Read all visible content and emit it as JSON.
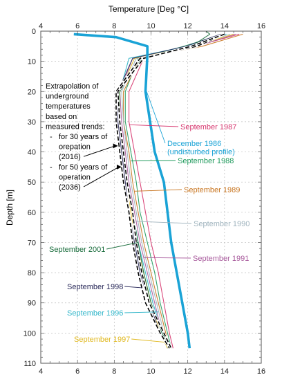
{
  "chart_data": {
    "type": "line",
    "title": "",
    "xlabel": "Temperature [Deg °C]",
    "ylabel": "Depth [m]",
    "xlim": [
      4,
      16
    ],
    "ylim": [
      0,
      110
    ],
    "y_inverted": true,
    "x_axis_position": "top and bottom",
    "grid": "dotted, every 2 °C and 10 m",
    "xticks": [
      4,
      6,
      8,
      10,
      12,
      14,
      16
    ],
    "yticks": [
      0,
      10,
      20,
      30,
      40,
      50,
      60,
      70,
      80,
      90,
      100,
      110
    ],
    "series": [
      {
        "name": "December 1986",
        "color": "#1aa3d6",
        "style": "thick",
        "points": [
          [
            5.8,
            1
          ],
          [
            8.1,
            2
          ],
          [
            9.8,
            5
          ],
          [
            9.8,
            8
          ],
          [
            9.7,
            20
          ],
          [
            10.2,
            40
          ],
          [
            10.7,
            50
          ],
          [
            10.9,
            60
          ],
          [
            11.1,
            70
          ],
          [
            11.4,
            80
          ],
          [
            11.7,
            90
          ],
          [
            12.0,
            100
          ],
          [
            12.1,
            105
          ]
        ]
      },
      {
        "name": "September 1987",
        "color": "#d6336c",
        "points": [
          [
            14.8,
            1
          ],
          [
            12.4,
            5
          ],
          [
            9.6,
            9
          ],
          [
            8.8,
            20
          ],
          [
            8.8,
            30
          ],
          [
            9.1,
            40
          ],
          [
            9.4,
            50
          ],
          [
            9.7,
            60
          ],
          [
            10.0,
            70
          ],
          [
            10.4,
            80
          ],
          [
            10.7,
            90
          ],
          [
            11.0,
            100
          ],
          [
            11.2,
            105
          ]
        ]
      },
      {
        "name": "September 1988",
        "color": "#1f9a5c",
        "points": [
          [
            13.9,
            1
          ],
          [
            11.8,
            5
          ],
          [
            9.3,
            9
          ],
          [
            8.6,
            20
          ],
          [
            8.6,
            30
          ],
          [
            8.9,
            40
          ],
          [
            9.2,
            50
          ],
          [
            9.4,
            60
          ],
          [
            9.8,
            70
          ],
          [
            10.2,
            80
          ],
          [
            10.5,
            90
          ],
          [
            10.9,
            100
          ],
          [
            11.1,
            105
          ]
        ]
      },
      {
        "name": "September 1989",
        "color": "#c8741e",
        "points": [
          [
            15.0,
            1
          ],
          [
            12.8,
            5
          ],
          [
            9.4,
            9
          ],
          [
            8.5,
            20
          ],
          [
            8.5,
            30
          ],
          [
            8.8,
            40
          ],
          [
            9.0,
            50
          ],
          [
            9.3,
            60
          ],
          [
            9.6,
            70
          ],
          [
            10.0,
            80
          ],
          [
            10.4,
            90
          ],
          [
            10.8,
            100
          ],
          [
            11.0,
            105
          ]
        ]
      },
      {
        "name": "September 1990",
        "color": "#9fb3bd",
        "points": [
          [
            14.3,
            1
          ],
          [
            12.2,
            5
          ],
          [
            9.2,
            9
          ],
          [
            8.4,
            20
          ],
          [
            8.5,
            30
          ],
          [
            8.7,
            40
          ],
          [
            8.9,
            50
          ],
          [
            9.2,
            60
          ],
          [
            9.5,
            70
          ],
          [
            9.9,
            80
          ],
          [
            10.3,
            90
          ],
          [
            10.7,
            100
          ],
          [
            10.9,
            105
          ]
        ]
      },
      {
        "name": "September 1991",
        "color": "#a85a9c",
        "points": [
          [
            14.6,
            1
          ],
          [
            12.5,
            5
          ],
          [
            9.0,
            9
          ],
          [
            8.3,
            20
          ],
          [
            8.4,
            30
          ],
          [
            8.6,
            40
          ],
          [
            8.8,
            50
          ],
          [
            9.1,
            60
          ],
          [
            9.4,
            70
          ],
          [
            9.8,
            80
          ],
          [
            10.2,
            90
          ],
          [
            10.6,
            100
          ],
          [
            10.9,
            105
          ]
        ]
      },
      {
        "name": "September 1996",
        "color": "#2fb5c9",
        "points": [
          [
            14.1,
            1
          ],
          [
            12.0,
            5
          ],
          [
            8.8,
            9
          ],
          [
            8.3,
            20
          ],
          [
            8.3,
            30
          ],
          [
            8.5,
            40
          ],
          [
            8.7,
            50
          ],
          [
            9.0,
            60
          ],
          [
            9.3,
            70
          ],
          [
            9.7,
            80
          ],
          [
            10.1,
            90
          ],
          [
            10.6,
            100
          ],
          [
            10.9,
            105
          ]
        ]
      },
      {
        "name": "September 1997",
        "color": "#e0b81f",
        "points": [
          [
            14.5,
            1
          ],
          [
            12.3,
            5
          ],
          [
            9.1,
            9
          ],
          [
            8.3,
            20
          ],
          [
            8.3,
            30
          ],
          [
            8.5,
            40
          ],
          [
            8.7,
            50
          ],
          [
            8.9,
            60
          ],
          [
            9.2,
            70
          ],
          [
            9.6,
            80
          ],
          [
            10.0,
            90
          ],
          [
            10.5,
            100
          ],
          [
            10.9,
            105
          ]
        ]
      },
      {
        "name": "September 1998",
        "color": "#2a2a5a",
        "points": [
          [
            13.8,
            1
          ],
          [
            11.9,
            5
          ],
          [
            9.0,
            9
          ],
          [
            8.2,
            20
          ],
          [
            8.2,
            30
          ],
          [
            8.4,
            40
          ],
          [
            8.6,
            50
          ],
          [
            8.8,
            60
          ],
          [
            9.1,
            70
          ],
          [
            9.4,
            80
          ],
          [
            9.9,
            90
          ],
          [
            10.5,
            100
          ],
          [
            11.0,
            105
          ]
        ]
      },
      {
        "name": "September 2001",
        "color": "#176b3a",
        "points": [
          [
            13.0,
            0
          ],
          [
            13.2,
            1
          ],
          [
            12.2,
            5
          ],
          [
            9.5,
            9
          ],
          [
            8.3,
            20
          ],
          [
            8.3,
            30
          ],
          [
            8.5,
            40
          ],
          [
            8.7,
            50
          ],
          [
            9.0,
            60
          ],
          [
            9.3,
            70
          ],
          [
            9.6,
            80
          ],
          [
            10.0,
            90
          ],
          [
            10.6,
            100
          ],
          [
            11.1,
            105
          ]
        ]
      },
      {
        "name": "for 30 years of orepation (2016)",
        "color": "#000000",
        "style": "dashed",
        "points": [
          [
            14.0,
            1
          ],
          [
            12.5,
            5
          ],
          [
            9.4,
            9
          ],
          [
            8.1,
            20
          ],
          [
            8.1,
            30
          ],
          [
            8.3,
            40
          ],
          [
            8.5,
            50
          ],
          [
            8.8,
            60
          ],
          [
            9.0,
            70
          ],
          [
            9.3,
            80
          ],
          [
            9.7,
            90
          ],
          [
            10.5,
            100
          ],
          [
            11.0,
            105
          ]
        ]
      },
      {
        "name": "for 50 years of operation (2036)",
        "color": "#000000",
        "style": "dashed",
        "points": [
          [
            14.0,
            1
          ],
          [
            12.2,
            5
          ],
          [
            9.6,
            9
          ],
          [
            8.2,
            20
          ],
          [
            8.3,
            30
          ],
          [
            8.5,
            40
          ],
          [
            8.7,
            50
          ],
          [
            9.0,
            60
          ],
          [
            9.2,
            70
          ],
          [
            9.5,
            80
          ],
          [
            9.9,
            90
          ],
          [
            10.7,
            100
          ],
          [
            11.1,
            105
          ]
        ]
      }
    ],
    "annotations": [
      {
        "text": [
          "December 1986",
          "(undisturbed profile)"
        ],
        "color": "#1aa3d6",
        "target": [
          9.7,
          19
        ]
      },
      {
        "text": [
          "September 1987"
        ],
        "color": "#d6336c",
        "target": [
          8.8,
          31
        ]
      },
      {
        "text": [
          "September 1988"
        ],
        "color": "#1f9a5c",
        "target": [
          8.9,
          43
        ]
      },
      {
        "text": [
          "September 1989"
        ],
        "color": "#c8741e",
        "target": [
          9.1,
          53
        ]
      },
      {
        "text": [
          "September 1990"
        ],
        "color": "#9fb3bd",
        "target": [
          9.2,
          63
        ]
      },
      {
        "text": [
          "September 1991"
        ],
        "color": "#a85a9c",
        "target": [
          9.6,
          75
        ]
      },
      {
        "text": [
          "September 2001"
        ],
        "color": "#176b3a",
        "target": [
          9.3,
          70
        ]
      },
      {
        "text": [
          "September 1998"
        ],
        "color": "#2a2a5a",
        "target": [
          9.5,
          85
        ]
      },
      {
        "text": [
          "September 1996"
        ],
        "color": "#2fb5c9",
        "target": [
          10.4,
          93
        ]
      },
      {
        "text": [
          "September 1997"
        ],
        "color": "#e0b81f",
        "target": [
          10.7,
          103
        ]
      }
    ],
    "extrapolation_note": {
      "lines": [
        "Extrapolation of",
        "underground",
        "temperatures",
        "based on",
        "measured trends:"
      ],
      "items": [
        {
          "lines": [
            "for 30 years of",
            "orepation",
            "(2016)"
          ],
          "target": [
            8.2,
            38
          ]
        },
        {
          "lines": [
            "for 50 years of",
            "operation",
            "(2036)"
          ],
          "target": [
            8.4,
            45
          ]
        }
      ]
    }
  }
}
